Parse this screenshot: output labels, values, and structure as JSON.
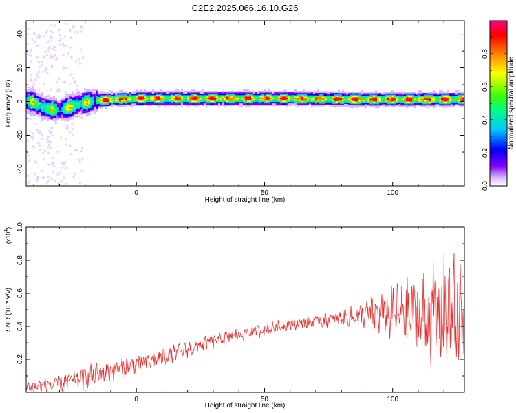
{
  "chart_data": [
    {
      "type": "heatmap",
      "title": "C2E2.2025.066.16.10.G26",
      "xlabel": "Height of straight line (km)",
      "ylabel": "Frequency (Hz)",
      "xlim": [
        -43,
        128
      ],
      "ylim": [
        -50,
        48
      ],
      "xticks": [
        0,
        50,
        100
      ],
      "xtick_labels": [
        "0",
        "50",
        "100"
      ],
      "yticks": [
        -40,
        -20,
        0,
        20,
        40
      ],
      "ytick_labels": [
        "-40",
        "-20",
        "0",
        "20",
        "40"
      ],
      "colorbar": {
        "label": "Normalized spectral amplitude",
        "range": [
          0,
          1
        ],
        "ticks": [
          0.0,
          0.2,
          0.4,
          0.6,
          0.8
        ],
        "tick_labels": [
          "0.0",
          "0.2",
          "0.4",
          "0.6",
          "0.8"
        ],
        "colormap": [
          "#ffffff",
          "#d8b8ff",
          "#8000ff",
          "#0000ff",
          "#00c8ff",
          "#00ff80",
          "#40ff00",
          "#ffff00",
          "#ff8000",
          "#ff0000",
          "#ff0080"
        ]
      },
      "ridge_profile": [
        {
          "x": -43,
          "y": 1
        },
        {
          "x": -40,
          "y": 0
        },
        {
          "x": -37,
          "y": -3
        },
        {
          "x": -34,
          "y": -4
        },
        {
          "x": -30,
          "y": -5
        },
        {
          "x": -26,
          "y": -3
        },
        {
          "x": -22,
          "y": -1
        },
        {
          "x": -18,
          "y": 0
        },
        {
          "x": -14,
          "y": 1
        },
        {
          "x": -8,
          "y": 1.5
        },
        {
          "x": 0,
          "y": 2
        },
        {
          "x": 20,
          "y": 2
        },
        {
          "x": 60,
          "y": 2
        },
        {
          "x": 90,
          "y": 1.5
        },
        {
          "x": 110,
          "y": 1.5
        },
        {
          "x": 128,
          "y": 1.5
        }
      ],
      "grid": false
    },
    {
      "type": "line",
      "xlabel": "Height of straight line (km)",
      "ylabel": "SNR (10 * v/v)",
      "y_multiplier": "(x10",
      "y_multiplier_exponent": "4",
      "xlim": [
        -43,
        128
      ],
      "ylim": [
        0,
        1.0
      ],
      "xticks": [
        0,
        50,
        100
      ],
      "xtick_labels": [
        "0",
        "50",
        "100"
      ],
      "yticks": [
        0.2,
        0.4,
        0.6,
        0.8,
        1.0
      ],
      "ytick_labels": [
        "0.2",
        "0.4",
        "0.6",
        "0.8",
        "1.0"
      ],
      "series": [
        {
          "color": "#e83030",
          "trend": [
            {
              "x": -43,
              "y": 0.03
            },
            {
              "x": -30,
              "y": 0.05
            },
            {
              "x": -20,
              "y": 0.09
            },
            {
              "x": -10,
              "y": 0.13
            },
            {
              "x": 0,
              "y": 0.17
            },
            {
              "x": 10,
              "y": 0.21
            },
            {
              "x": 20,
              "y": 0.26
            },
            {
              "x": 30,
              "y": 0.31
            },
            {
              "x": 40,
              "y": 0.35
            },
            {
              "x": 50,
              "y": 0.38
            },
            {
              "x": 60,
              "y": 0.41
            },
            {
              "x": 70,
              "y": 0.43
            },
            {
              "x": 80,
              "y": 0.45
            },
            {
              "x": 90,
              "y": 0.47
            },
            {
              "x": 100,
              "y": 0.48
            },
            {
              "x": 110,
              "y": 0.47
            },
            {
              "x": 120,
              "y": 0.46
            },
            {
              "x": 128,
              "y": 0.45
            }
          ],
          "spread": [
            {
              "x": -43,
              "y": 0.03
            },
            {
              "x": -20,
              "y": 0.06
            },
            {
              "x": 0,
              "y": 0.05
            },
            {
              "x": 20,
              "y": 0.04
            },
            {
              "x": 60,
              "y": 0.03
            },
            {
              "x": 80,
              "y": 0.04
            },
            {
              "x": 90,
              "y": 0.07
            },
            {
              "x": 100,
              "y": 0.14
            },
            {
              "x": 110,
              "y": 0.2
            },
            {
              "x": 120,
              "y": 0.3
            },
            {
              "x": 128,
              "y": 0.32
            }
          ]
        }
      ],
      "grid": false
    }
  ]
}
